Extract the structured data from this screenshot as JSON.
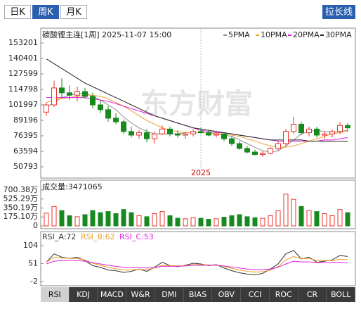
{
  "toolbar": {
    "periods": [
      "日K",
      "周K",
      "月K"
    ],
    "selected": 1,
    "button": "拉长线"
  },
  "chart_data": [
    {
      "type": "candlestick",
      "title": "碳酸锂主连[1周] 2025-11-07 15:00",
      "watermark": "东方财富",
      "up_color": "#e8332a",
      "down_color": "#17891f",
      "categories": [
        null,
        null,
        null,
        null,
        null,
        null,
        null,
        null,
        null,
        null,
        null,
        null,
        null,
        null,
        null,
        null,
        null,
        null,
        null,
        null,
        "2025",
        null,
        null,
        null,
        null,
        null,
        null,
        null,
        null,
        null,
        null,
        null,
        null,
        null,
        null,
        null,
        null,
        null,
        null,
        null
      ],
      "open": [
        96000,
        102000,
        116000,
        112000,
        110000,
        113000,
        109000,
        102000,
        98000,
        91000,
        88000,
        80000,
        77000,
        79000,
        74000,
        78000,
        82000,
        78000,
        77000,
        78000,
        80000,
        79000,
        77000,
        78000,
        74000,
        70000,
        66000,
        63000,
        61000,
        62000,
        66000,
        70000,
        80000,
        86000,
        79000,
        82000,
        77000,
        78000,
        80000,
        85000
      ],
      "high": [
        104000,
        122000,
        124000,
        118000,
        117000,
        116000,
        112000,
        106000,
        101000,
        95000,
        90000,
        84000,
        81000,
        82000,
        80000,
        85000,
        84000,
        81000,
        80000,
        82000,
        83000,
        81000,
        80000,
        79000,
        76000,
        72000,
        68000,
        65000,
        64000,
        67000,
        72000,
        82000,
        92000,
        88000,
        84000,
        84000,
        80000,
        82000,
        88000,
        87000
      ],
      "low": [
        93000,
        100000,
        108000,
        106000,
        105000,
        107000,
        99000,
        95000,
        88000,
        86000,
        78000,
        75000,
        74000,
        71000,
        70000,
        77000,
        76000,
        75000,
        74000,
        76000,
        78000,
        76000,
        75000,
        72000,
        68000,
        65000,
        62000,
        60000,
        59000,
        61000,
        64000,
        68000,
        78000,
        77000,
        76000,
        75000,
        74000,
        75000,
        78000,
        80000
      ],
      "close": [
        102000,
        116000,
        112000,
        110000,
        113000,
        109000,
        102000,
        98000,
        91000,
        88000,
        80000,
        77000,
        79000,
        74000,
        78000,
        82000,
        78000,
        77000,
        78000,
        80000,
        79000,
        77000,
        78000,
        74000,
        70000,
        66000,
        63000,
        61000,
        62000,
        66000,
        70000,
        80000,
        86000,
        79000,
        82000,
        77000,
        78000,
        80000,
        85000,
        83000
      ],
      "series": [
        {
          "name": "5PMA",
          "color": "#8c8c8c",
          "values": [
            100000,
            104000,
            108000,
            110000,
            111000,
            112000,
            109000,
            106000,
            102000,
            98000,
            92000,
            87000,
            83000,
            80000,
            78000,
            78000,
            78000,
            78000,
            79000,
            79000,
            79000,
            79000,
            78000,
            77000,
            76000,
            73000,
            70000,
            67000,
            64000,
            63000,
            64000,
            68000,
            73000,
            78000,
            80000,
            81000,
            80000,
            79000,
            80000,
            81000
          ]
        },
        {
          "name": "10PMA",
          "color": "#f0a030",
          "values": [
            104000,
            106000,
            107000,
            108000,
            109000,
            110000,
            110000,
            109000,
            107000,
            104000,
            101000,
            97000,
            93000,
            89000,
            86000,
            83000,
            81000,
            80000,
            79000,
            79000,
            79000,
            79000,
            78000,
            78000,
            77000,
            76000,
            74000,
            72000,
            70000,
            68000,
            67000,
            67000,
            68000,
            70000,
            72000,
            74000,
            76000,
            78000,
            79000,
            80000
          ]
        },
        {
          "name": "20PMA",
          "color": "#e020e0",
          "values": [
            108000,
            108000,
            108000,
            108000,
            108000,
            108000,
            107000,
            106000,
            105000,
            103000,
            101000,
            99000,
            97000,
            95000,
            93000,
            91000,
            89000,
            87000,
            85000,
            83000,
            81000,
            80000,
            79000,
            79000,
            78000,
            77000,
            76000,
            75000,
            74000,
            73000,
            72000,
            72000,
            72000,
            72000,
            72000,
            72000,
            73000,
            73000,
            74000,
            75000
          ]
        },
        {
          "name": "30PMA",
          "color": "#222222",
          "values": [
            140000,
            136000,
            132000,
            128000,
            124000,
            120000,
            117000,
            114000,
            111000,
            108000,
            105000,
            102000,
            99000,
            96000,
            93000,
            91000,
            89000,
            87000,
            85000,
            83000,
            82000,
            81000,
            80000,
            79000,
            78000,
            77000,
            76000,
            75000,
            74000,
            73000,
            73000,
            73000,
            73000,
            73000,
            72000,
            72000,
            72000,
            72000,
            72000,
            72000
          ]
        }
      ],
      "ylim": [
        50793,
        153201
      ],
      "yticks": [
        153201,
        140401,
        127599,
        114798,
        101997,
        89196,
        76395,
        63594,
        50793
      ]
    },
    {
      "type": "bar",
      "title": "成交量:3471065",
      "values": [
        250,
        380,
        300,
        200,
        180,
        220,
        300,
        260,
        280,
        240,
        320,
        260,
        200,
        180,
        240,
        280,
        200,
        150,
        140,
        160,
        150,
        130,
        140,
        170,
        200,
        220,
        180,
        160,
        150,
        200,
        300,
        620,
        520,
        380,
        300,
        280,
        240,
        200,
        320,
        260
      ],
      "ylim": [
        0,
        700.38
      ],
      "yticks": [
        {
          "value": 700.38,
          "label": "700.38万"
        },
        {
          "value": 525.29,
          "label": "525.29万"
        },
        {
          "value": 350.19,
          "label": "350.19万"
        },
        {
          "value": 175.1,
          "label": "175.10万"
        },
        0
      ]
    },
    {
      "type": "line",
      "series": [
        {
          "name": "RSI_A:72",
          "color": "#333333",
          "values": [
            55,
            80,
            70,
            66,
            70,
            60,
            45,
            40,
            32,
            30,
            25,
            28,
            35,
            28,
            40,
            55,
            45,
            42,
            46,
            52,
            50,
            45,
            48,
            38,
            30,
            24,
            20,
            18,
            22,
            35,
            50,
            80,
            90,
            65,
            70,
            55,
            58,
            62,
            75,
            72
          ]
        },
        {
          "name": "RSI_B:62",
          "color": "#e8a020",
          "values": [
            55,
            70,
            68,
            66,
            66,
            62,
            52,
            46,
            40,
            36,
            32,
            32,
            34,
            33,
            38,
            46,
            45,
            44,
            45,
            48,
            48,
            47,
            47,
            43,
            37,
            32,
            28,
            26,
            27,
            32,
            42,
            62,
            72,
            66,
            66,
            60,
            60,
            60,
            64,
            62
          ]
        },
        {
          "name": "RSI_C:53",
          "color": "#e020e0",
          "values": [
            50,
            58,
            60,
            60,
            60,
            58,
            54,
            50,
            46,
            43,
            40,
            39,
            39,
            38,
            39,
            43,
            43,
            43,
            44,
            46,
            46,
            46,
            46,
            44,
            41,
            38,
            35,
            33,
            33,
            35,
            40,
            50,
            58,
            56,
            56,
            54,
            54,
            54,
            55,
            53
          ]
        }
      ],
      "ylim": [
        -2,
        104
      ],
      "yticks": [
        104,
        51,
        -2
      ]
    }
  ],
  "tabs": {
    "items": [
      "RSI",
      "KDJ",
      "MACD",
      "W&R",
      "DMI",
      "BIAS",
      "OBV",
      "CCI",
      "ROC",
      "CR",
      "BOLL"
    ],
    "selected": 0
  }
}
